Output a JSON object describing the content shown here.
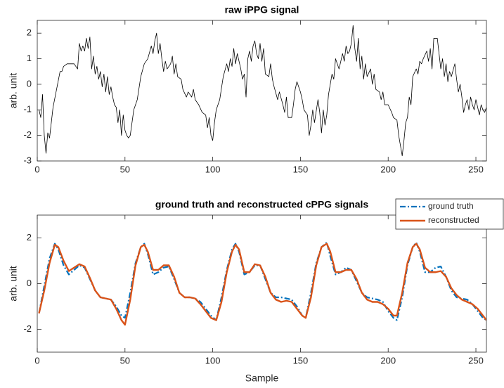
{
  "chart_data": [
    {
      "type": "line",
      "title": "raw iPPG signal",
      "ylabel": "arb. unit",
      "xlim": [
        0,
        256
      ],
      "ylim": [
        -3,
        2.5
      ],
      "xticks": [
        0,
        50,
        100,
        150,
        200,
        250
      ],
      "yticks": [
        -3,
        -2,
        -1,
        0,
        1,
        2
      ],
      "x": [
        1,
        2,
        3,
        4,
        5,
        6,
        7,
        9,
        11,
        13,
        14,
        15,
        17,
        19,
        21,
        22,
        23,
        24,
        25,
        26,
        27,
        28,
        29,
        30,
        31,
        32,
        33,
        34,
        35,
        36,
        37,
        38,
        39,
        40,
        41,
        42,
        43,
        44,
        45,
        46,
        47,
        48,
        49,
        50,
        51,
        52,
        53,
        55,
        57,
        59,
        61,
        63,
        65,
        66,
        67,
        68,
        69,
        70,
        71,
        72,
        73,
        74,
        76,
        77,
        78,
        79,
        80,
        82,
        83,
        85,
        86,
        88,
        89,
        90,
        92,
        94,
        96,
        97,
        98,
        99,
        100,
        101,
        102,
        104,
        106,
        108,
        109,
        110,
        111,
        112,
        113,
        114,
        116,
        117,
        118,
        119,
        120,
        121,
        122,
        123,
        124,
        125,
        126,
        127,
        128,
        129,
        130,
        132,
        133,
        134,
        135,
        137,
        138,
        140,
        141,
        142,
        143,
        145,
        146,
        147,
        148,
        150,
        151,
        152,
        154,
        155,
        156,
        157,
        158,
        160,
        161,
        162,
        163,
        164,
        165,
        166,
        168,
        169,
        170,
        172,
        174,
        175,
        176,
        177,
        178,
        179,
        180,
        181,
        182,
        183,
        184,
        185,
        186,
        187,
        188,
        190,
        191,
        192,
        193,
        195,
        196,
        197,
        198,
        200,
        202,
        203,
        205,
        206,
        207,
        208,
        209,
        210,
        211,
        212,
        213,
        214,
        216,
        217,
        218,
        219,
        220,
        222,
        223,
        224,
        225,
        226,
        227,
        228,
        229,
        230,
        231,
        232,
        233,
        234,
        235,
        236,
        238,
        239,
        240,
        241,
        242,
        243,
        244,
        245,
        246,
        247,
        248,
        249,
        250,
        251,
        252,
        253,
        254,
        255,
        256
      ],
      "series": [
        {
          "name": "raw iPPG",
          "color": "#000000",
          "linestyle": "-",
          "width": 0.8,
          "values": [
            -1.0,
            -1.3,
            -0.4,
            -2.0,
            -2.7,
            -1.9,
            -2.1,
            -0.9,
            -0.2,
            0.5,
            0.5,
            0.7,
            0.8,
            0.8,
            0.8,
            0.7,
            0.6,
            1.6,
            1.3,
            1.5,
            1.3,
            1.8,
            1.4,
            1.85,
            0.6,
            1.1,
            0.4,
            0.7,
            0.2,
            0.5,
            -0.1,
            0.4,
            -0.3,
            0.3,
            -0.4,
            -0.1,
            -0.5,
            -0.8,
            -0.9,
            -1.5,
            -1.0,
            -2.0,
            -1.2,
            -1.8,
            -2.0,
            -2.1,
            -2.0,
            -1.0,
            -0.6,
            0.3,
            0.8,
            1.0,
            1.5,
            1.2,
            1.7,
            2.0,
            1.2,
            1.6,
            1.0,
            0.5,
            0.9,
            0.6,
            0.8,
            1.1,
            0.4,
            0.8,
            0.3,
            0.2,
            -0.2,
            -0.5,
            -0.3,
            -0.5,
            -0.2,
            -0.6,
            -0.8,
            -1.1,
            -1.2,
            -1.7,
            -1.3,
            -2.0,
            -2.2,
            -1.5,
            -1.0,
            -0.6,
            0.3,
            0.8,
            0.5,
            1.0,
            0.7,
            1.4,
            0.8,
            1.2,
            0.6,
            0.2,
            0.4,
            -0.5,
            1.0,
            1.3,
            0.9,
            1.5,
            1.7,
            1.2,
            1.0,
            1.6,
            0.9,
            1.4,
            0.4,
            0.3,
            0.8,
            0.2,
            -0.1,
            -0.6,
            -0.3,
            -0.8,
            -1.1,
            -0.5,
            -1.3,
            -1.3,
            -0.8,
            -0.2,
            0.1,
            -0.3,
            -0.6,
            -1.0,
            -1.2,
            -2.0,
            -1.6,
            -1.0,
            -1.5,
            -0.6,
            -1.1,
            -1.9,
            -1.0,
            -1.6,
            -1.2,
            -0.4,
            0.4,
            0.2,
            1.0,
            0.6,
            1.2,
            0.9,
            1.5,
            1.2,
            1.3,
            1.6,
            2.3,
            1.4,
            0.9,
            1.8,
            0.6,
            1.1,
            0.2,
            0.8,
            0.3,
            0.6,
            0,
            0.4,
            -0.2,
            -0.3,
            -0.6,
            -0.3,
            -0.8,
            -0.8,
            -1.1,
            -1.3,
            -1.4,
            -2.0,
            -2.4,
            -2.8,
            -2.2,
            -1.5,
            -1.3,
            -0.5,
            -0.8,
            0.3,
            0.6,
            0.4,
            0.9,
            0.8,
            1.0,
            1.3,
            0.9,
            1.4,
            0.6,
            1.8,
            1.8,
            1.8,
            1.2,
            0.6,
            1.0,
            0.3,
            0.8,
            0.1,
            0.5,
            0.3,
            0.8,
            0.2,
            -0.3,
            0,
            -0.5,
            -1.1,
            -0.8,
            -0.6,
            -1.0,
            -0.5,
            -0.8,
            -1.0,
            -0.6,
            -0.9,
            -1.2,
            -0.8,
            -1.0,
            -1.1,
            -0.9
          ]
        }
      ]
    },
    {
      "type": "line",
      "title": "ground truth and reconstructed cPPG signals",
      "ylabel": "arb. unit",
      "xlabel": "Sample",
      "xlim": [
        0,
        256
      ],
      "ylim": [
        -3,
        3
      ],
      "xticks": [
        0,
        50,
        100,
        150,
        200,
        250
      ],
      "yticks": [
        -2,
        0,
        2
      ],
      "legend": "northeast",
      "x": [
        1,
        4,
        7,
        10,
        12,
        15,
        18,
        21,
        24,
        27,
        30,
        33,
        36,
        39,
        42,
        45,
        48,
        50,
        53,
        56,
        59,
        61,
        63,
        66,
        69,
        72,
        75,
        78,
        81,
        84,
        87,
        90,
        93,
        96,
        99,
        102,
        105,
        108,
        111,
        113,
        115,
        118,
        121,
        124,
        127,
        130,
        133,
        136,
        139,
        142,
        145,
        148,
        151,
        153,
        156,
        159,
        162,
        165,
        167,
        170,
        173,
        176,
        179,
        182,
        185,
        188,
        191,
        194,
        197,
        200,
        203,
        205,
        208,
        211,
        214,
        216,
        218,
        221,
        224,
        227,
        230,
        233,
        236,
        239,
        242,
        245,
        248,
        251,
        254,
        256
      ],
      "series": [
        {
          "name": "ground truth",
          "color": "#0072bd",
          "linestyle": "-.",
          "width": 2.2,
          "values": [
            -1.3,
            -0.1,
            1.1,
            1.75,
            1.5,
            0.8,
            0.4,
            0.6,
            0.8,
            0.7,
            0.2,
            -0.3,
            -0.6,
            -0.65,
            -0.7,
            -1.0,
            -1.4,
            -1.5,
            -0.4,
            0.9,
            1.6,
            1.75,
            1.3,
            0.4,
            0.5,
            0.7,
            0.75,
            0.2,
            -0.4,
            -0.6,
            -0.6,
            -0.65,
            -0.8,
            -1.1,
            -1.4,
            -1.6,
            -0.6,
            0.6,
            1.5,
            1.75,
            1.4,
            0.4,
            0.5,
            0.8,
            0.8,
            0.2,
            -0.4,
            -0.6,
            -0.6,
            -0.65,
            -0.7,
            -1.0,
            -1.4,
            -1.5,
            -0.4,
            0.9,
            1.6,
            1.8,
            1.2,
            0.4,
            0.5,
            0.7,
            0.6,
            0.1,
            -0.4,
            -0.6,
            -0.65,
            -0.7,
            -0.8,
            -1.2,
            -1.5,
            -1.6,
            -0.6,
            0.8,
            1.6,
            1.8,
            1.4,
            0.5,
            0.5,
            0.7,
            0.75,
            0.3,
            -0.3,
            -0.6,
            -0.65,
            -0.7,
            -0.9,
            -1.2,
            -1.5,
            -1.6
          ]
        },
        {
          "name": "reconstructed",
          "color": "#d95319",
          "linestyle": "-",
          "width": 2.4,
          "values": [
            -1.3,
            -0.3,
            0.9,
            1.7,
            1.6,
            1.0,
            0.55,
            0.7,
            0.85,
            0.75,
            0.25,
            -0.3,
            -0.6,
            -0.65,
            -0.7,
            -1.1,
            -1.6,
            -1.8,
            -0.7,
            0.8,
            1.6,
            1.7,
            1.4,
            0.6,
            0.6,
            0.8,
            0.8,
            0.3,
            -0.4,
            -0.6,
            -0.6,
            -0.65,
            -0.9,
            -1.2,
            -1.5,
            -1.6,
            -0.8,
            0.5,
            1.4,
            1.7,
            1.5,
            0.5,
            0.5,
            0.85,
            0.8,
            0.3,
            -0.4,
            -0.7,
            -0.8,
            -0.75,
            -0.8,
            -1.1,
            -1.4,
            -1.5,
            -0.6,
            0.8,
            1.6,
            1.75,
            1.4,
            0.5,
            0.5,
            0.6,
            0.6,
            0.2,
            -0.4,
            -0.7,
            -0.8,
            -0.8,
            -0.9,
            -1.1,
            -1.4,
            -1.4,
            -0.4,
            0.9,
            1.6,
            1.75,
            1.5,
            0.7,
            0.5,
            0.5,
            0.55,
            0.3,
            -0.2,
            -0.5,
            -0.7,
            -0.8,
            -0.9,
            -1.1,
            -1.4,
            -1.6
          ]
        }
      ]
    }
  ]
}
